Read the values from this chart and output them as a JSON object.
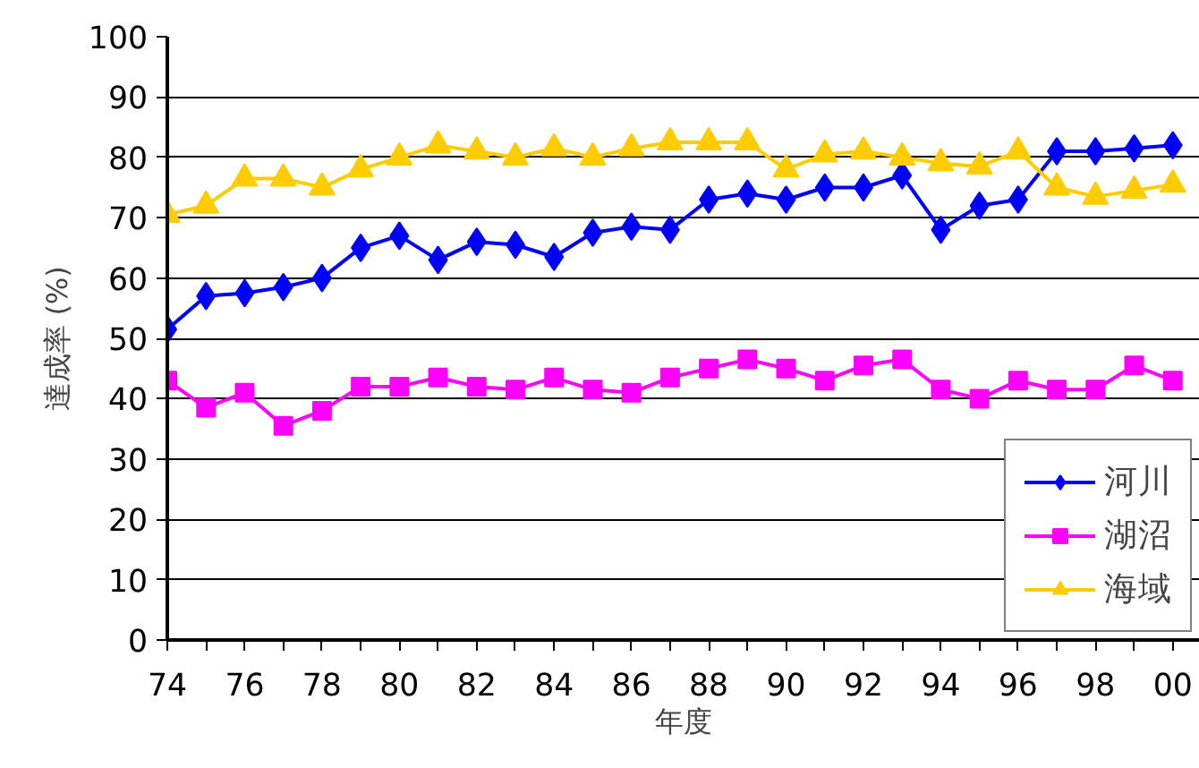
{
  "chart_data": {
    "type": "line",
    "xlabel": "年度",
    "ylabel": "達成率 (%)",
    "categories": [
      "74",
      null,
      "76",
      null,
      "78",
      null,
      "80",
      null,
      "82",
      null,
      "84",
      null,
      "86",
      null,
      "88",
      null,
      "90",
      null,
      "92",
      null,
      "94",
      null,
      "96",
      null,
      "98",
      null,
      "00"
    ],
    "series": [
      {
        "name": "河川",
        "color": "#0000ff",
        "marker": "diamond",
        "values": [
          51.5,
          57,
          57.5,
          58.5,
          60,
          65,
          67,
          63,
          66,
          65.5,
          63.5,
          67.5,
          68.5,
          68,
          73,
          74,
          73,
          75,
          75,
          77,
          68,
          72,
          73,
          81,
          81,
          81.5,
          82
        ]
      },
      {
        "name": "湖沼",
        "color": "#ff00ff",
        "marker": "square",
        "values": [
          43,
          38.5,
          41,
          35.5,
          38,
          42,
          42,
          43.5,
          42,
          41.5,
          43.5,
          41.5,
          41,
          43.5,
          45,
          46.5,
          45,
          43,
          45.5,
          46.5,
          41.5,
          40,
          43,
          41.5,
          41.5,
          45.5,
          43
        ]
      },
      {
        "name": "海域",
        "color": "#ffcc00",
        "marker": "triangle",
        "values": [
          70.5,
          72,
          76.5,
          76.5,
          75,
          78,
          80,
          82,
          81,
          80,
          81.5,
          80,
          81.5,
          82.5,
          82.5,
          82.5,
          78,
          80.5,
          81,
          80,
          79,
          78.5,
          81,
          75,
          73.5,
          74.5,
          75.5
        ]
      }
    ],
    "ylim": [
      0,
      100
    ],
    "yticks": [
      0,
      10,
      20,
      30,
      40,
      50,
      60,
      70,
      80,
      90,
      100
    ],
    "grid": "y",
    "legend": "bottom right",
    "line_style": "solid"
  }
}
